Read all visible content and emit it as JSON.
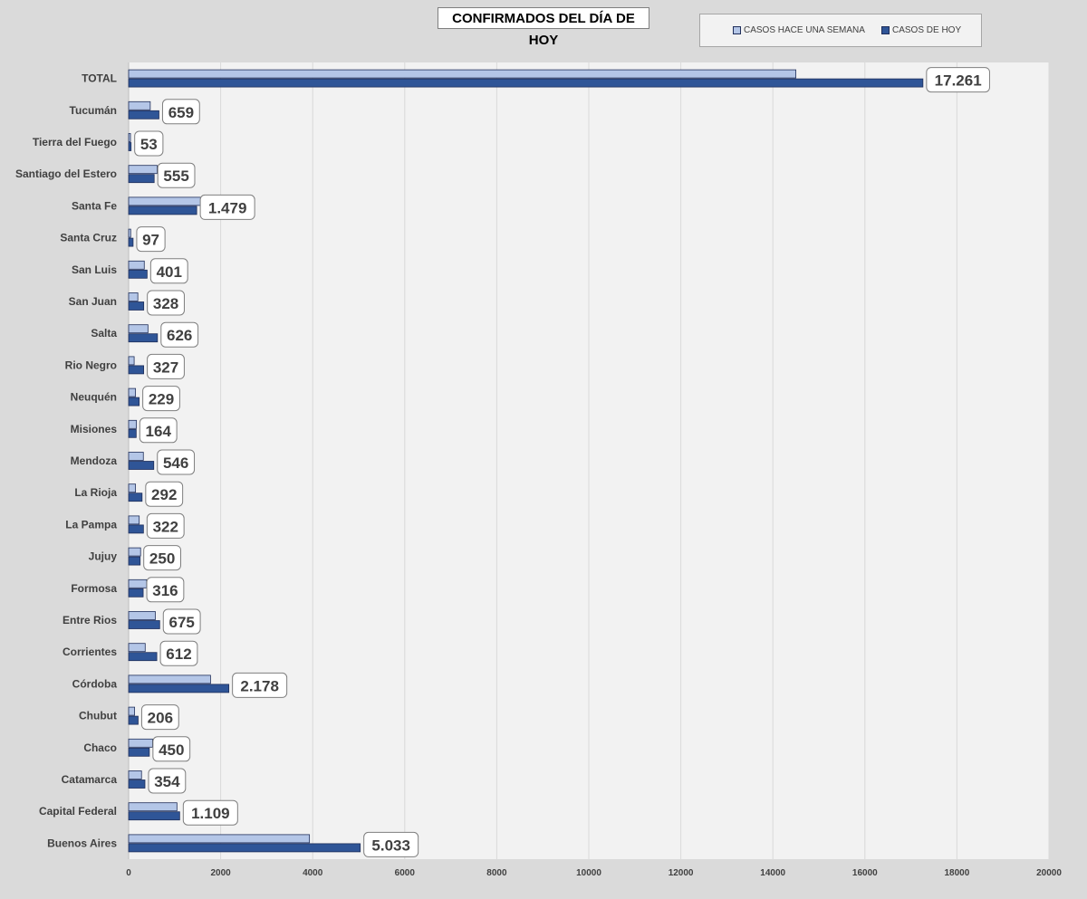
{
  "chart_data": {
    "type": "bar",
    "orientation": "horizontal",
    "title": "CONFIRMADOS DEL DÍA DE HOY",
    "categories": [
      "TOTAL",
      "Tucumán",
      "Tierra del Fuego",
      "Santiago del Estero",
      "Santa Fe",
      "Santa Cruz",
      "San Luis",
      "San Juan",
      "Salta",
      "Rio Negro",
      "Neuquén",
      "Misiones",
      "Mendoza",
      "La Rioja",
      "La Pampa",
      "Jujuy",
      "Formosa",
      "Entre Rios",
      "Corrientes",
      "Córdoba",
      "Chubut",
      "Chaco",
      "Catamarca",
      "Capital Federal",
      "Buenos Aires"
    ],
    "series": [
      {
        "name": "CASOS HACE UNA SEMANA",
        "color": "#b4c6e7",
        "values": [
          14500,
          470,
          40,
          620,
          1600,
          45,
          340,
          200,
          420,
          120,
          150,
          170,
          320,
          150,
          230,
          260,
          390,
          580,
          360,
          1780,
          130,
          520,
          280,
          1050,
          3930
        ]
      },
      {
        "name": "CASOS DE HOY",
        "color": "#2f5597",
        "values": [
          17261,
          659,
          53,
          555,
          1479,
          97,
          401,
          328,
          626,
          327,
          229,
          164,
          546,
          292,
          322,
          250,
          316,
          675,
          612,
          2178,
          206,
          450,
          354,
          1109,
          5033
        ]
      }
    ],
    "data_labels": [
      "17.261",
      "659",
      "53",
      "555",
      "1.479",
      "97",
      "401",
      "328",
      "626",
      "327",
      "229",
      "164",
      "546",
      "292",
      "322",
      "250",
      "316",
      "675",
      "612",
      "2.178",
      "206",
      "450",
      "354",
      "1.109",
      "5.033"
    ],
    "x_ticks": [
      "0",
      "2000",
      "4000",
      "6000",
      "8000",
      "10000",
      "12000",
      "14000",
      "16000",
      "18000",
      "20000"
    ],
    "xlim": [
      0,
      20000
    ],
    "grid": true,
    "legend_position": "top-right",
    "plot_background": "#f2f2f2",
    "page_background": "#dadada"
  }
}
